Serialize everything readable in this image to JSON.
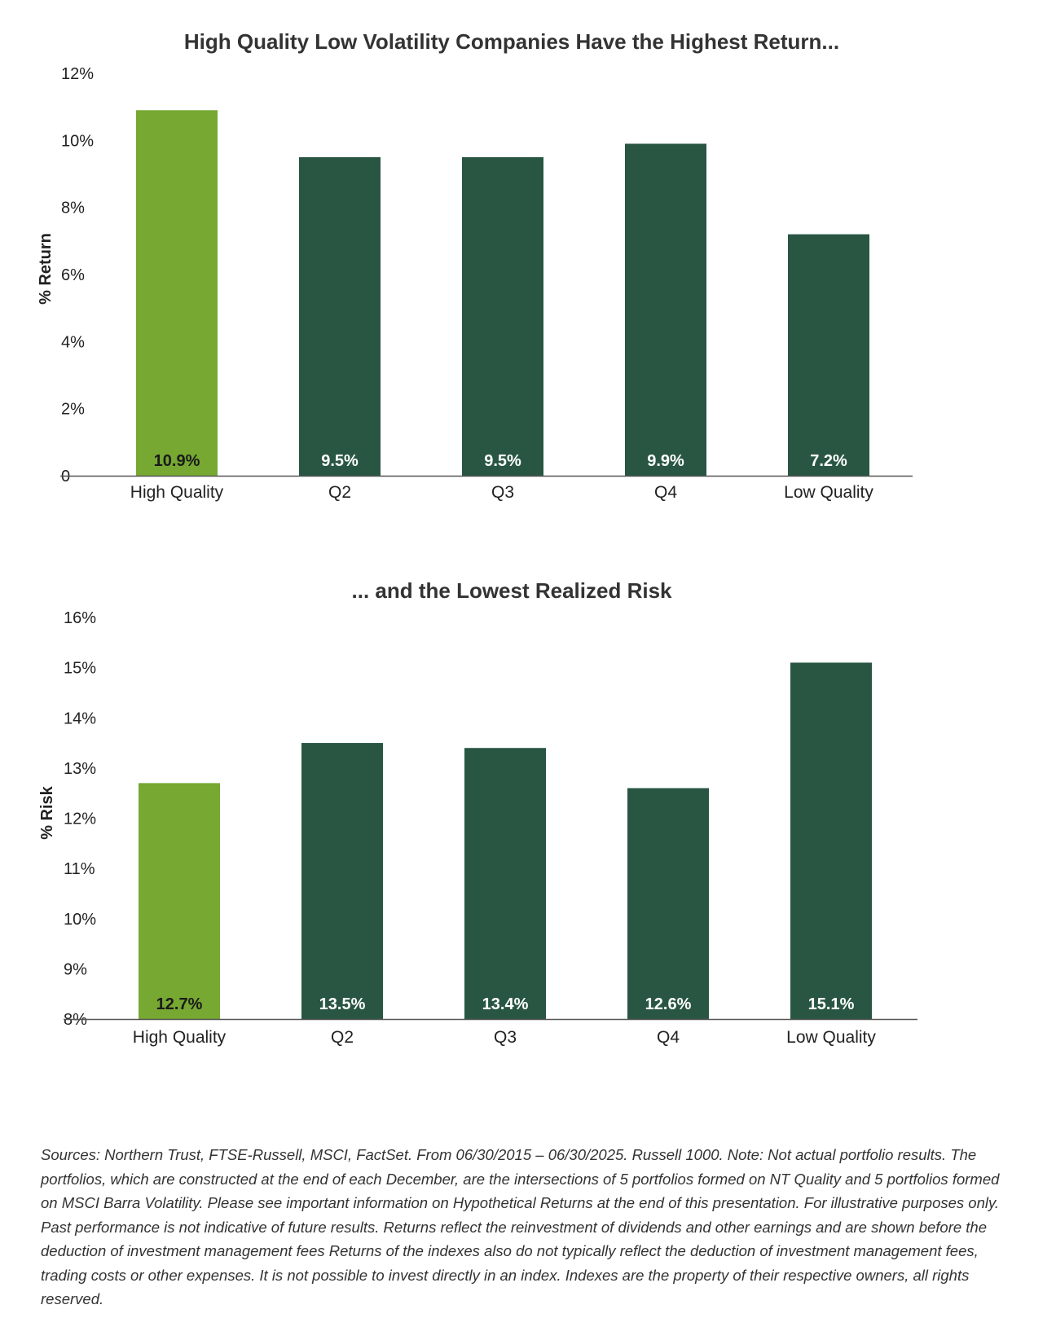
{
  "chart_data": [
    {
      "type": "bar",
      "title": "High Quality Low Volatility Companies Have the Highest Return...",
      "ylabel": "% Return",
      "xlabel": "",
      "categories": [
        "High Quality",
        "Q2",
        "Q3",
        "Q4",
        "Low Quality"
      ],
      "values": [
        10.9,
        9.5,
        9.5,
        9.9,
        7.2
      ],
      "value_labels": [
        "10.9%",
        "9.5%",
        "9.5%",
        "9.9%",
        "7.2%"
      ],
      "ylim": [
        0,
        12
      ],
      "yticks": [
        0,
        2,
        4,
        6,
        8,
        10,
        12
      ],
      "ytick_labels": [
        "0",
        "2%",
        "4%",
        "6%",
        "8%",
        "10%",
        "12%"
      ],
      "grid": false,
      "highlight_index": 0,
      "colors": {
        "highlight": "#76a832",
        "bar": "#285642",
        "highlight_label": "#1a1a1a",
        "bar_label": "#ffffff",
        "axis": "#555555"
      }
    },
    {
      "type": "bar",
      "title": "... and the Lowest Realized Risk",
      "ylabel": "% Risk",
      "xlabel": "",
      "categories": [
        "High Quality",
        "Q2",
        "Q3",
        "Q4",
        "Low Quality"
      ],
      "values": [
        12.7,
        13.5,
        13.4,
        12.6,
        15.1
      ],
      "value_labels": [
        "12.7%",
        "13.5%",
        "13.4%",
        "12.6%",
        "15.1%"
      ],
      "ylim": [
        8,
        16
      ],
      "yticks": [
        8,
        9,
        10,
        11,
        12,
        13,
        14,
        15,
        16
      ],
      "ytick_labels": [
        "8%",
        "9%",
        "10%",
        "11%",
        "12%",
        "13%",
        "14%",
        "15%",
        "16%"
      ],
      "grid": false,
      "highlight_index": 0,
      "colors": {
        "highlight": "#76a832",
        "bar": "#285642",
        "highlight_label": "#1a1a1a",
        "bar_label": "#ffffff",
        "axis": "#555555"
      }
    }
  ],
  "footnote": "Sources: Northern Trust, FTSE-Russell, MSCI, FactSet. From 06/30/2015 – 06/30/2025. Russell 1000. Note: Not actual portfolio results. The portfolios, which are constructed at the end of each December, are the intersections of 5 portfolios formed on NT Quality and 5 portfolios formed on MSCI Barra Volatility. Please see important information on Hypothetical Returns at the end of this presentation. For illustrative purposes only. Past performance is not indicative of future results. Returns reflect the reinvestment of dividends and other earnings and are shown before the deduction of investment management fees Returns of the indexes also do not typically reflect the deduction of investment management fees, trading costs or other expenses. It is not possible to invest directly in an index. Indexes are the property of their respective owners, all rights reserved."
}
